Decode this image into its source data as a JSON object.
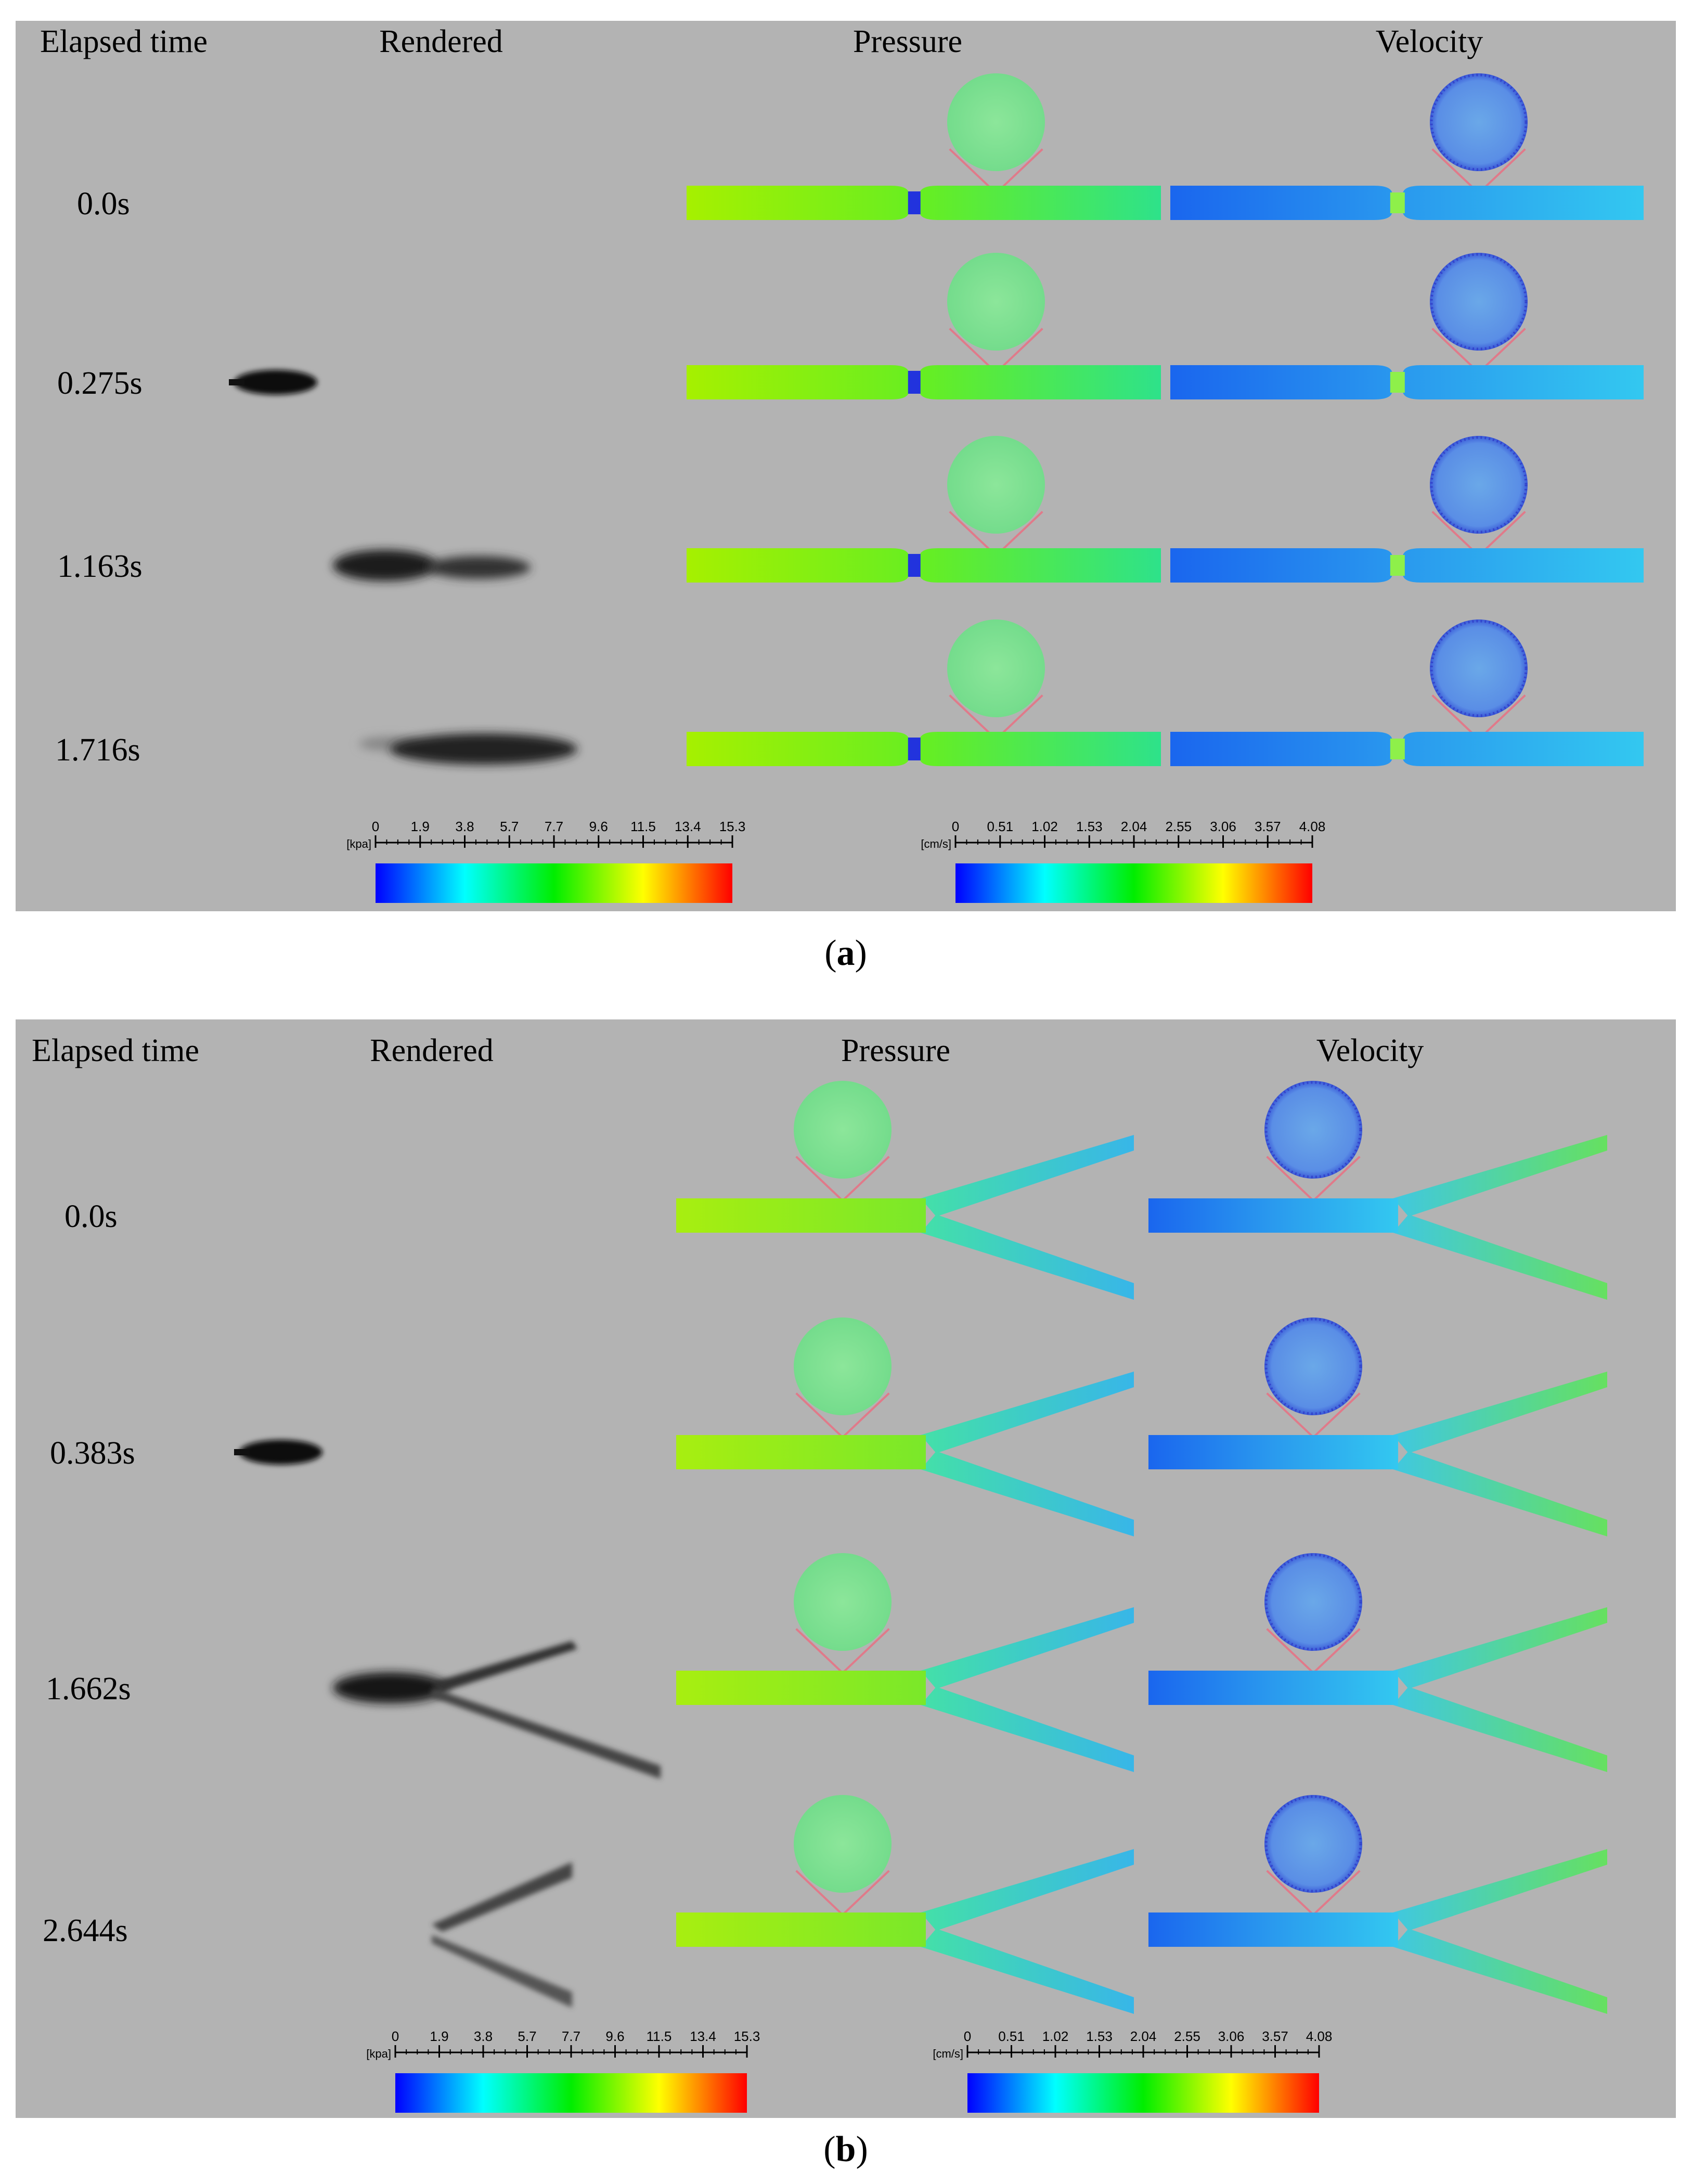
{
  "colors": {
    "panel_bg": "#b3b3b3",
    "jet_dark": "#111111",
    "support_line": "#e07a8a",
    "colormap": [
      "#0000ff",
      "#00ffff",
      "#00ff00",
      "#ffff00",
      "#ff0000"
    ]
  },
  "panels": [
    {
      "id": "a",
      "label_open": "(",
      "label_letter": "a",
      "label_close": ")",
      "geometry": "straight-stenosis",
      "headers": {
        "time": "Elapsed time",
        "rendered": "Rendered",
        "pressure": "Pressure",
        "velocity": "Velocity"
      },
      "rows": [
        {
          "time": "0.0s",
          "jet": "none"
        },
        {
          "time": "0.275s",
          "jet": "small"
        },
        {
          "time": "1.163s",
          "jet": "mid"
        },
        {
          "time": "1.716s",
          "jet": "long"
        }
      ],
      "pressure_scale": {
        "unit": "[kpa]",
        "ticks": [
          "0",
          "1.9",
          "3.8",
          "5.7",
          "7.7",
          "9.6",
          "11.5",
          "13.4",
          "15.3"
        ]
      },
      "velocity_scale": {
        "unit": "[cm/s]",
        "ticks": [
          "0",
          "0.51",
          "1.02",
          "1.53",
          "2.04",
          "2.55",
          "3.06",
          "3.57",
          "4.08"
        ]
      }
    },
    {
      "id": "b",
      "label_open": "(",
      "label_letter": "b",
      "label_close": ")",
      "geometry": "bifurcation",
      "headers": {
        "time": "Elapsed time",
        "rendered": "Rendered",
        "pressure": "Pressure",
        "velocity": "Velocity"
      },
      "rows": [
        {
          "time": "0.0s",
          "jet": "none"
        },
        {
          "time": "0.383s",
          "jet": "small"
        },
        {
          "time": "1.662s",
          "jet": "branch-mid"
        },
        {
          "time": "2.644s",
          "jet": "branch-late"
        }
      ],
      "pressure_scale": {
        "unit": "[kpa]",
        "ticks": [
          "0",
          "1.9",
          "3.8",
          "5.7",
          "7.7",
          "9.6",
          "11.5",
          "13.4",
          "15.3"
        ]
      },
      "velocity_scale": {
        "unit": "[cm/s]",
        "ticks": [
          "0",
          "0.51",
          "1.02",
          "1.53",
          "2.04",
          "2.55",
          "3.06",
          "3.57",
          "4.08"
        ]
      }
    }
  ]
}
